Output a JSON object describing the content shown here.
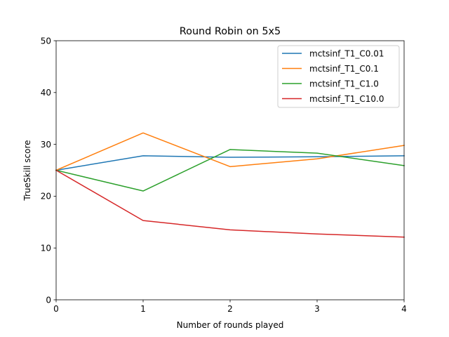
{
  "chart_data": {
    "type": "line",
    "title": "Round Robin on 5x5",
    "xlabel": "Number of rounds played",
    "ylabel": "TrueSkill score",
    "x": [
      0,
      1,
      2,
      3,
      4
    ],
    "xlim": [
      0,
      4
    ],
    "ylim": [
      0,
      50
    ],
    "xticks": [
      0,
      1,
      2,
      3,
      4
    ],
    "yticks": [
      0,
      10,
      20,
      30,
      40,
      50
    ],
    "grid": false,
    "legend_position": "top-right",
    "series": [
      {
        "name": "mctsinf_T1_C0.01",
        "color": "#1f77b4",
        "values": [
          25.0,
          27.8,
          27.5,
          27.6,
          27.8
        ]
      },
      {
        "name": "mctsinf_T1_C0.1",
        "color": "#ff7f0e",
        "values": [
          25.0,
          32.2,
          25.7,
          27.2,
          29.8
        ]
      },
      {
        "name": "mctsinf_T1_C1.0",
        "color": "#2ca02c",
        "values": [
          25.0,
          21.0,
          29.0,
          28.3,
          25.9
        ]
      },
      {
        "name": "mctsinf_T1_C10.0",
        "color": "#d62728",
        "values": [
          25.0,
          15.3,
          13.5,
          12.7,
          12.1
        ]
      }
    ]
  }
}
